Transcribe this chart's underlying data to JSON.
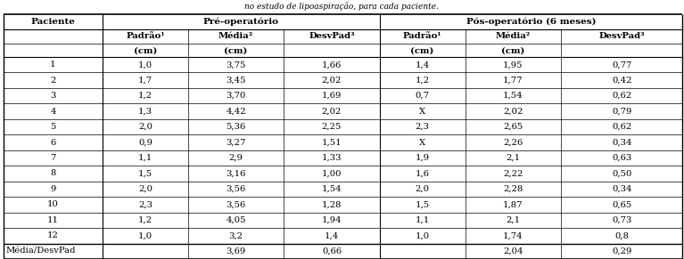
{
  "title": "no estudo de lipoaspiração, para cada paciente.",
  "subheaders_row1": [
    "",
    "Padrão¹",
    "Média²",
    "DesvPad³",
    "Padrão¹",
    "Média²",
    "DesvPad³"
  ],
  "subheaders_row2": [
    "",
    "(cm)",
    "(cm)",
    "",
    "(cm)",
    "(cm)",
    ""
  ],
  "rows": [
    [
      "1",
      "1,0",
      "3,75",
      "1,66",
      "1,4",
      "1,95",
      "0,77"
    ],
    [
      "2",
      "1,7",
      "3,45",
      "2,02",
      "1,2",
      "1,77",
      "0,42"
    ],
    [
      "3",
      "1,2",
      "3,70",
      "1,69",
      "0,7",
      "1,54",
      "0,62"
    ],
    [
      "4",
      "1,3",
      "4,42",
      "2,02",
      "X",
      "2,02",
      "0,79"
    ],
    [
      "5",
      "2,0",
      "5,36",
      "2,25",
      "2,3",
      "2,65",
      "0,62"
    ],
    [
      "6",
      "0,9",
      "3,27",
      "1,51",
      "X",
      "2,26",
      "0,34"
    ],
    [
      "7",
      "1,1",
      "2,9",
      "1,33",
      "1,9",
      "2,1",
      "0,63"
    ],
    [
      "8",
      "1,5",
      "3,16",
      "1,00",
      "1,6",
      "2,22",
      "0,50"
    ],
    [
      "9",
      "2,0",
      "3,56",
      "1,54",
      "2,0",
      "2,28",
      "0,34"
    ],
    [
      "10",
      "2,3",
      "3,56",
      "1,28",
      "1,5",
      "1,87",
      "0,65"
    ],
    [
      "11",
      "1,2",
      "4,05",
      "1,94",
      "1,1",
      "2,1",
      "0,73"
    ],
    [
      "12",
      "1,0",
      "3,2",
      "1,4",
      "1,0",
      "1,74",
      "0,8"
    ]
  ],
  "footer": [
    "Média/DesvPad",
    "",
    "3,69",
    "0,66",
    "",
    "2,04",
    "0,29"
  ],
  "text_color": "#000000",
  "figsize": [
    7.67,
    2.91
  ],
  "dpi": 100
}
